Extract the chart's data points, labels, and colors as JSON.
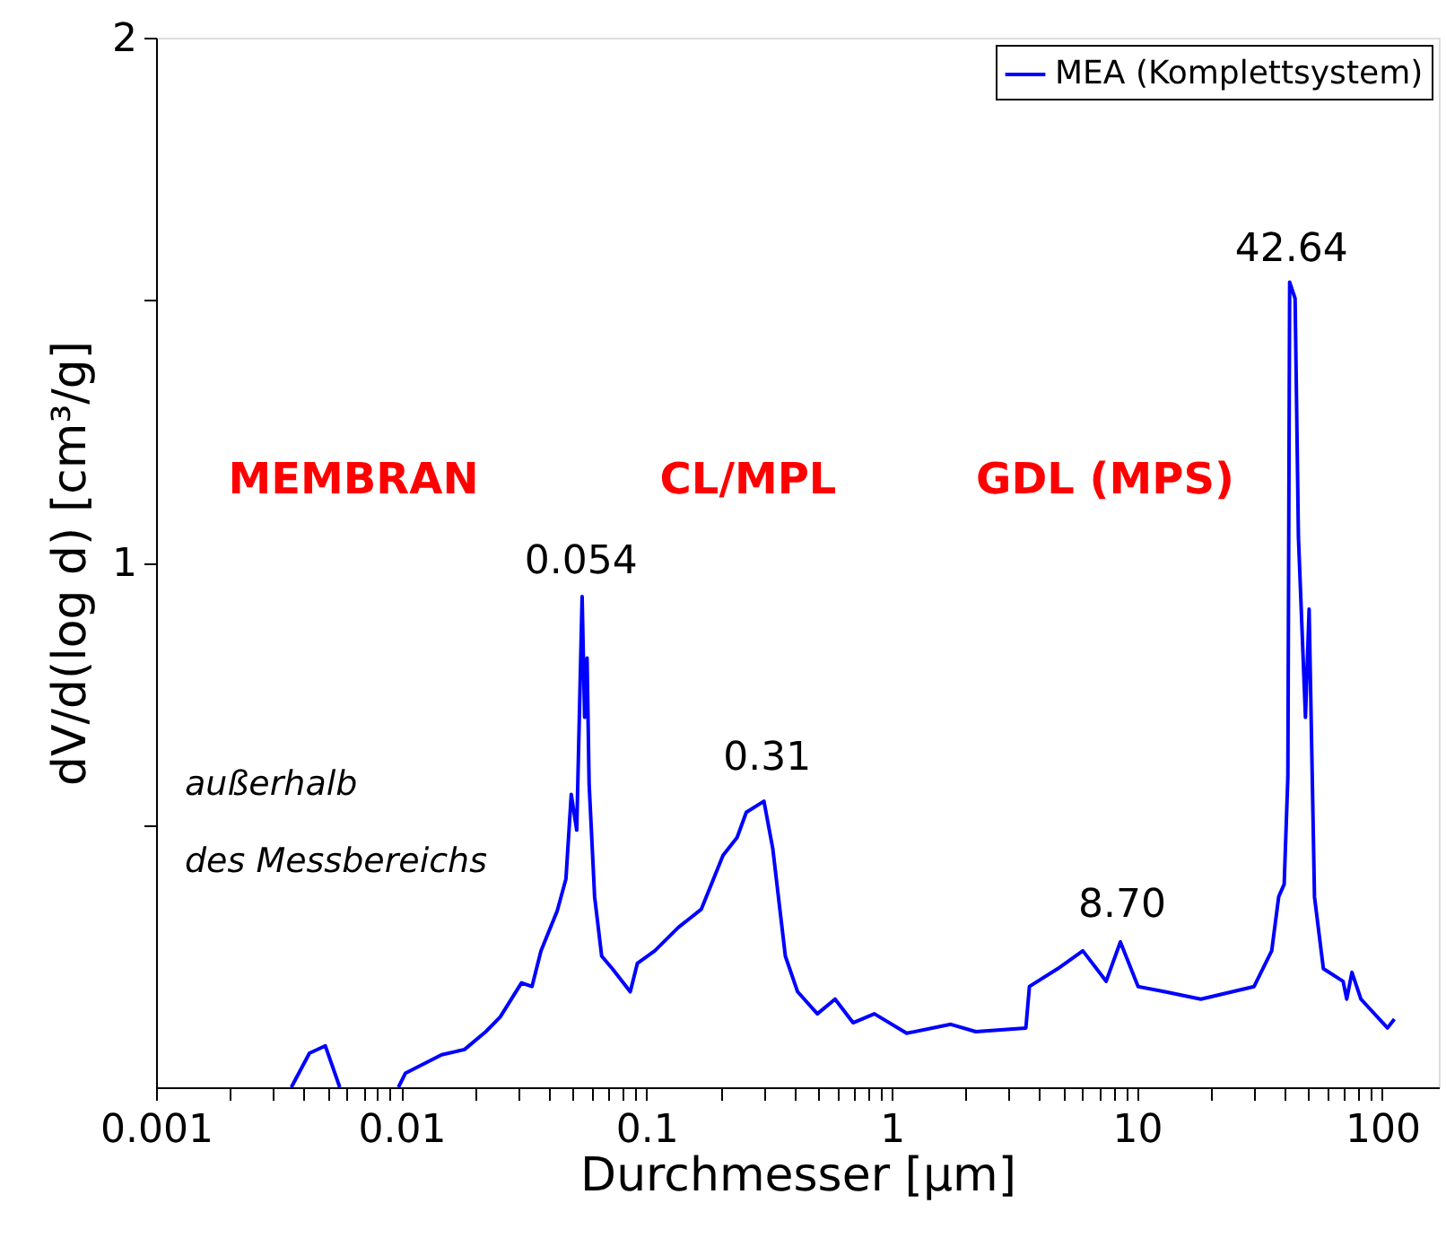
{
  "chart_data": {
    "type": "line",
    "xlabel": "Durchmesser [µm]",
    "ylabel": "dV/d(log d) [cm³/g]",
    "log": "x",
    "grid": false,
    "legend": "top right",
    "marker": "none",
    "line_style": "solid",
    "xlim": [
      0.001,
      170
    ],
    "ylim": [
      0,
      2
    ],
    "xticks": [
      0.001,
      {
        "value": 0.002,
        "label": null
      },
      {
        "value": 0.003,
        "label": null
      },
      {
        "value": 0.004,
        "label": null
      },
      {
        "value": 0.005,
        "label": null
      },
      {
        "value": 0.006,
        "label": null
      },
      {
        "value": 0.007,
        "label": null
      },
      {
        "value": 0.008,
        "label": null
      },
      {
        "value": 0.009,
        "label": null
      },
      0.01,
      {
        "value": 0.02,
        "label": null
      },
      {
        "value": 0.03,
        "label": null
      },
      {
        "value": 0.04,
        "label": null
      },
      {
        "value": 0.05,
        "label": null
      },
      {
        "value": 0.06,
        "label": null
      },
      {
        "value": 0.07,
        "label": null
      },
      {
        "value": 0.08,
        "label": null
      },
      {
        "value": 0.09,
        "label": null
      },
      0.1,
      {
        "value": 0.2,
        "label": null
      },
      {
        "value": 0.3,
        "label": null
      },
      {
        "value": 0.4,
        "label": null
      },
      {
        "value": 0.5,
        "label": null
      },
      {
        "value": 0.6,
        "label": null
      },
      {
        "value": 0.7,
        "label": null
      },
      {
        "value": 0.8,
        "label": null
      },
      {
        "value": 0.9,
        "label": null
      },
      1,
      {
        "value": 2,
        "label": null
      },
      {
        "value": 3,
        "label": null
      },
      {
        "value": 4,
        "label": null
      },
      {
        "value": 5,
        "label": null
      },
      {
        "value": 6,
        "label": null
      },
      {
        "value": 7,
        "label": null
      },
      {
        "value": 8,
        "label": null
      },
      {
        "value": 9,
        "label": null
      },
      10,
      {
        "value": 20,
        "label": null
      },
      {
        "value": 30,
        "label": null
      },
      {
        "value": 40,
        "label": null
      },
      {
        "value": 50,
        "label": null
      },
      {
        "value": 60,
        "label": null
      },
      {
        "value": 70,
        "label": null
      },
      {
        "value": 80,
        "label": null
      },
      {
        "value": 90,
        "label": null
      },
      100
    ],
    "yticks": [
      {
        "value": 0.5,
        "label": null
      },
      1,
      {
        "value": 1.5,
        "label": null
      },
      2
    ],
    "series": [
      {
        "name": "MEA (Komplettsystem)",
        "color": "#0000ff",
        "x": [
          0.00356,
          0.00422,
          0.0049,
          0.00561,
          0.007,
          0.00973,
          0.0104,
          0.0146,
          0.0181,
          0.0221,
          0.0253,
          0.0309,
          0.0341,
          0.0371,
          0.0432,
          0.0469,
          0.0493,
          0.0519,
          0.0546,
          0.0559,
          0.0572,
          0.0583,
          0.0614,
          0.0656,
          0.0725,
          0.0858,
          0.0917,
          0.108,
          0.135,
          0.167,
          0.205,
          0.234,
          0.255,
          0.301,
          0.327,
          0.368,
          0.413,
          0.497,
          0.587,
          0.695,
          0.849,
          1.15,
          1.74,
          2.2,
          3.52,
          3.64,
          4.75,
          6.01,
          7.48,
          8.55,
          10.1,
          13.0,
          18.2,
          30.0,
          35.4,
          37.8,
          39.8,
          41.2,
          41.9,
          44.1,
          45.5,
          48.6,
          50.3,
          52.9,
          57.5,
          69.2,
          71.6,
          75.2,
          81.8,
          105,
          112
        ],
        "values": [
          0,
          0.065,
          0.079,
          0,
          null,
          0,
          0.027,
          0.062,
          0.072,
          0.106,
          0.134,
          0.199,
          0.192,
          0.26,
          0.336,
          0.397,
          0.558,
          0.49,
          0.935,
          0.705,
          0.818,
          0.579,
          0.363,
          0.25,
          0.226,
          0.182,
          0.236,
          0.26,
          0.305,
          0.339,
          0.442,
          0.476,
          0.524,
          0.545,
          0.455,
          0.25,
          0.182,
          0.14,
          0.168,
          0.123,
          0.14,
          0.103,
          0.12,
          0.106,
          0.113,
          0.192,
          0.226,
          0.26,
          0.202,
          0.277,
          0.192,
          0.182,
          0.168,
          0.192,
          0.26,
          0.363,
          0.387,
          0.592,
          1.534,
          1.503,
          1.048,
          0.705,
          0.911,
          0.363,
          0.226,
          0.202,
          0.168,
          0.219,
          0.168,
          0.113,
          0.13
        ]
      }
    ],
    "annotations": [
      {
        "text": "0.054",
        "x": 0.054,
        "y": 0.935
      },
      {
        "text": "0.31",
        "x": 0.31,
        "y": 0.56
      },
      {
        "text": "8.70",
        "x": 8.7,
        "y": 0.28
      },
      {
        "text": "42.64",
        "x": 42.64,
        "y": 1.53
      },
      "MEMBRAN",
      "CL/MPL",
      "GDL (MPS)",
      "außerhalb",
      "des Messbereichs"
    ]
  }
}
